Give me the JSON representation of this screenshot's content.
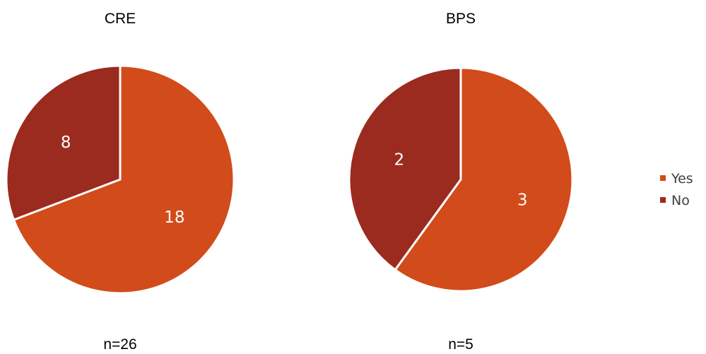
{
  "chart_data": [
    {
      "type": "pie",
      "title": "CRE",
      "caption": "n=26",
      "slices": [
        {
          "label": "Yes",
          "value": 18,
          "color": "#d24b1a"
        },
        {
          "label": "No",
          "value": 8,
          "color": "#9b2b1f"
        }
      ]
    },
    {
      "type": "pie",
      "title": "BPS",
      "caption": "n=5",
      "slices": [
        {
          "label": "Yes",
          "value": 3,
          "color": "#d24b1a"
        },
        {
          "label": "No",
          "value": 2,
          "color": "#9b2b1f"
        }
      ]
    }
  ],
  "legend": {
    "placement": "right",
    "items": [
      {
        "label": "Yes",
        "color": "#d24b1a"
      },
      {
        "label": "No",
        "color": "#9b2b1f"
      }
    ]
  }
}
